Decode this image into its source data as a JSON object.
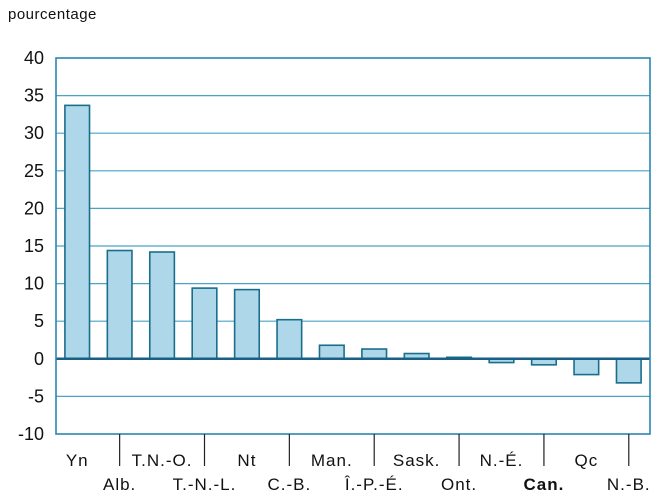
{
  "chart_data": {
    "type": "bar",
    "ylabel": "pourcentage",
    "ylim": [
      -10,
      40
    ],
    "yticks": [
      40,
      35,
      30,
      25,
      20,
      15,
      10,
      5,
      0,
      -5,
      -10
    ],
    "grid": true,
    "categories": [
      "Yn",
      "Alb.",
      "T.N.-O.",
      "T.-N.-L.",
      "Nt",
      "C.-B.",
      "Man.",
      "Î.-P.-É.",
      "Sask.",
      "Ont.",
      "N.-É.",
      "Can.",
      "Qc",
      "N.-B."
    ],
    "values": [
      33.7,
      14.4,
      14.2,
      9.4,
      9.2,
      5.2,
      1.8,
      1.3,
      0.7,
      0.2,
      -0.5,
      -0.8,
      -2.1,
      -3.2
    ],
    "emphasized_category": "Can.",
    "colors": {
      "bar_fill": "#aed8ea",
      "bar_stroke": "#1a6e8c",
      "grid": "#4aa3c8",
      "frame": "#2a86b0",
      "zero_line": "#1a5f86",
      "text": "#111111"
    }
  }
}
